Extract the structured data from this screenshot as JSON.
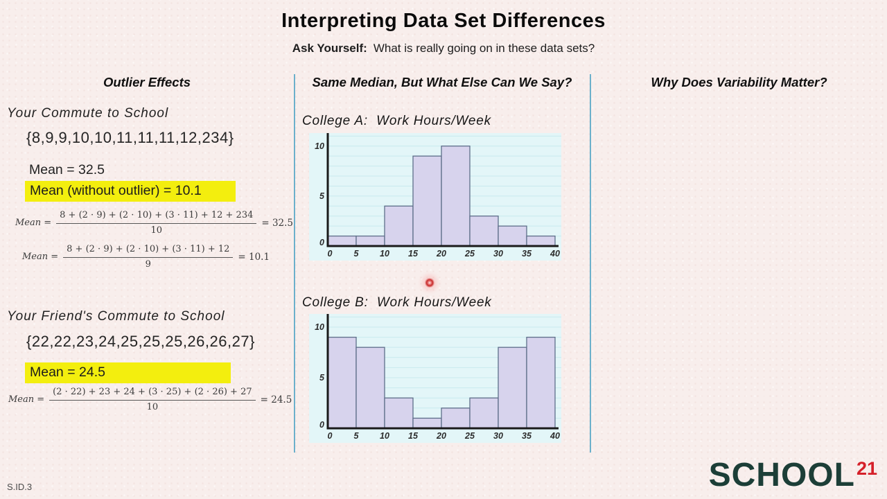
{
  "header": {
    "title": "Interpreting Data Set Differences",
    "ask_label": "Ask Yourself:",
    "ask_question": "What is really going on in these data sets?"
  },
  "column_headers": {
    "left": "Outlier Effects",
    "middle": "Same Median, But What Else Can We Say?",
    "right": "Why Does Variability Matter?"
  },
  "outlier_effects": {
    "your_commute": {
      "title": "Your Commute to School",
      "data_set": "{8,9,9,10,10,11,11,11,12,234}",
      "mean": "Mean = 32.5",
      "mean_without_outlier": "Mean (without outlier) = 10.1"
    },
    "friends_commute": {
      "title": "Your Friend's Commute to School",
      "data_set": "{22,22,23,24,25,25,25,26,26,27}",
      "mean": "Mean = 24.5"
    },
    "formulas": [
      {
        "lhs": "Mean =",
        "numerator": "8 + (2 · 9) + (2 · 10) + (3 · 11) + 12 + 234",
        "denominator": "10",
        "result": "= 32.5"
      },
      {
        "lhs": "Mean =",
        "numerator": "8 + (2 · 9) + (2 · 10) + (3 · 11) + 12",
        "denominator": "9",
        "result": "= 10.1"
      },
      {
        "lhs": "Mean =",
        "numerator": "(2 · 22) + 23 + 24 + (3 · 25) + (2 · 26) + 27",
        "denominator": "10",
        "result": "= 24.5"
      }
    ]
  },
  "chart_data": [
    {
      "type": "bar",
      "title": "College A:  Work Hours/Week",
      "bin_edges": [
        0,
        5,
        10,
        15,
        20,
        25,
        30,
        35,
        40
      ],
      "values": [
        1,
        1,
        4,
        9,
        10,
        3,
        2,
        1
      ],
      "xticks": [
        0,
        5,
        10,
        15,
        20,
        25,
        30,
        35,
        40
      ],
      "yticks": [
        0,
        5,
        10
      ],
      "xlim": [
        0,
        40
      ],
      "ylim": [
        0,
        11.3
      ],
      "grid": true,
      "legend": false
    },
    {
      "type": "bar",
      "title": "College B:  Work Hours/Week",
      "bin_edges": [
        0,
        5,
        10,
        15,
        20,
        25,
        30,
        35,
        40
      ],
      "values": [
        9,
        8,
        3,
        1,
        2,
        3,
        8,
        9
      ],
      "xticks": [
        0,
        5,
        10,
        15,
        20,
        25,
        30,
        35,
        40
      ],
      "yticks": [
        0,
        5,
        10
      ],
      "xlim": [
        0,
        40
      ],
      "ylim": [
        0,
        11.3
      ],
      "grid": true,
      "legend": false
    }
  ],
  "colors": {
    "background": "#f8eeec",
    "divider": "#6cb0cb",
    "highlight": "#f3ee0e",
    "plot_bg": "#e3f6f8",
    "grid_line": "#c8eaee",
    "bar_fill": "#d7d3ed",
    "bar_stroke": "#5d6e89",
    "axis": "#1a1a1a",
    "tick_label": "#2b2b2b",
    "logo_text": "#1c3e37",
    "logo_accent": "#d5202a",
    "laser": "#c62828"
  },
  "footer": {
    "standard_code": "S.ID.3",
    "logo_text": "SCHOOL",
    "logo_superscript": "21"
  }
}
